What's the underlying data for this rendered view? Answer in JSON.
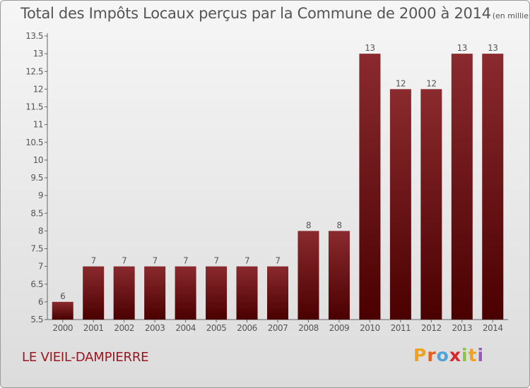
{
  "header": {
    "title": "Total des Impôts Locaux perçus par la Commune de 2000 à 2014",
    "unit": "(en milliers d'€)"
  },
  "footer": {
    "commune": "LE VIEIL-DAMPIERRE",
    "brand": [
      "P",
      "r",
      "o",
      "x",
      "i",
      "t",
      "i"
    ],
    "brand_colors": [
      "#f0a21d",
      "#e85c1c",
      "#4fa2dc",
      "#d9262e",
      "#8bc540",
      "#f0a21d",
      "#9b59b6"
    ]
  },
  "colors": {
    "bar_top": "#8a2a2e",
    "bar_bottom": "#4a0000",
    "axis": "#666666",
    "text": "#555555"
  },
  "chart_data": {
    "type": "bar",
    "title": "Total des Impôts Locaux perçus par la Commune de 2000 à 2014",
    "xlabel": "",
    "ylabel": "",
    "categories": [
      "2000",
      "2001",
      "2002",
      "2003",
      "2004",
      "2005",
      "2006",
      "2007",
      "2008",
      "2009",
      "2010",
      "2011",
      "2012",
      "2013",
      "2014"
    ],
    "values": [
      6,
      7,
      7,
      7,
      7,
      7,
      7,
      7,
      8,
      8,
      13,
      12,
      12,
      13,
      13
    ],
    "labels": [
      "6",
      "7",
      "7",
      "7",
      "7",
      "7",
      "7",
      "7",
      "8",
      "8",
      "13",
      "12",
      "12",
      "13",
      "13"
    ],
    "ylim": [
      5.5,
      13.5
    ],
    "yticks": [
      5.5,
      6,
      6.5,
      7,
      7.5,
      8,
      8.5,
      9,
      9.5,
      10,
      10.5,
      11,
      11.5,
      12,
      12.5,
      13,
      13.5
    ],
    "ytick_labels": [
      "5.5",
      "6",
      "6.5",
      "7",
      "7.5",
      "8",
      "8.5",
      "9",
      "9.5",
      "10",
      "10.5",
      "11",
      "11.5",
      "12",
      "12.5",
      "13",
      "13.5"
    ],
    "grid": false
  }
}
